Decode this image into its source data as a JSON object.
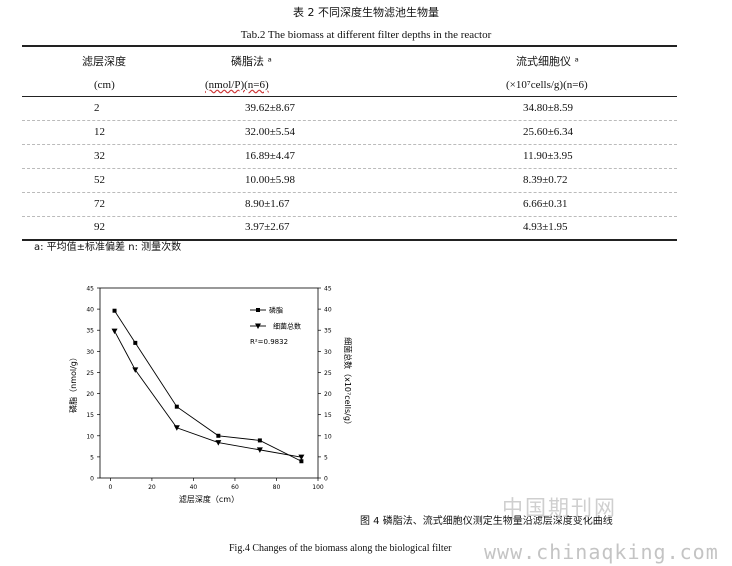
{
  "table": {
    "title_cn": "表 2 不同深度生物滤池生物量",
    "title_en": "Tab.2 The biomass at different filter depths in the reactor",
    "headers": {
      "depth": "滤层深度",
      "depth_unit": "(cm)",
      "phospho": "磷脂法 ᵃ",
      "phospho_unit": "(nmol/P)(n=6)",
      "flow": "流式细胞仪 ᵃ",
      "flow_unit": "(×10⁷cells/g)(n=6)"
    },
    "rows": [
      {
        "depth": "2",
        "phospho": "39.62±8.67",
        "flow": "34.80±8.59"
      },
      {
        "depth": "12",
        "phospho": "32.00±5.54",
        "flow": "25.60±6.34"
      },
      {
        "depth": "32",
        "phospho": "16.89±4.47",
        "flow": "11.90±3.95"
      },
      {
        "depth": "52",
        "phospho": "10.00±5.98",
        "flow": "8.39±0.72"
      },
      {
        "depth": "72",
        "phospho": "8.90±1.67",
        "flow": "6.66±0.31"
      },
      {
        "depth": "92",
        "phospho": "3.97±2.67",
        "flow": "4.93±1.95"
      }
    ],
    "note": "a: 平均值±标准偏差   n: 测量次数"
  },
  "figure": {
    "caption_cn": "图 4 磷脂法、流式细胞仪测定生物量沿滤层深度变化曲线",
    "caption_en": "Fig.4 Changes of the biomass along the biological filter"
  },
  "chart_data": {
    "type": "line",
    "title": "",
    "xlabel": "滤层深度（cm）",
    "ylabel": "磷脂（nmol/g）",
    "y2label": "细菌总数（x10⁷cells/g）",
    "x": [
      2,
      12,
      32,
      52,
      72,
      92
    ],
    "xlim": [
      -5,
      100
    ],
    "xticks": [
      "0",
      "20",
      "40",
      "60",
      "80",
      "100"
    ],
    "ylim": [
      0,
      45
    ],
    "y2lim": [
      0,
      45
    ],
    "yticks": [
      "0",
      "5",
      "10",
      "15",
      "20",
      "25",
      "30",
      "35",
      "40",
      "45"
    ],
    "series": [
      {
        "name": "磷脂",
        "marker": "square",
        "values": [
          39.62,
          32.0,
          16.89,
          10.0,
          8.9,
          3.97
        ]
      },
      {
        "name": "细菌总数",
        "marker": "triangle-down",
        "values": [
          34.8,
          25.6,
          11.9,
          8.39,
          6.66,
          4.93
        ]
      }
    ],
    "annotation": "R²=0.9832",
    "legend_position": "top-right",
    "grid": false
  },
  "watermark": {
    "cn": "中国期刊网",
    "url": "www.chinaqking.com"
  }
}
